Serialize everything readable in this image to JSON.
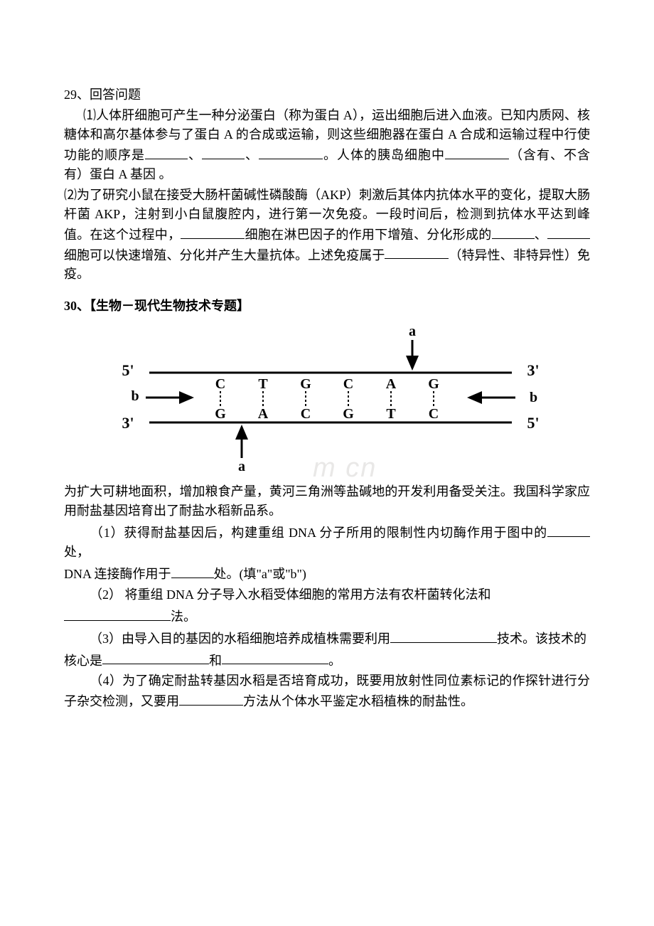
{
  "q29": {
    "header": "29、回答问题",
    "p1a": "⑴人体肝细胞可产生一种分泌蛋白（称为蛋白 A），运出细胞后进入血液。已知内质网、核糖体和高尔基体参与了蛋白 A 的合成或运输，则这些细胞器在蛋白 A 合成和运输过程中行使功能的顺序是",
    "p1b": "。人体的胰岛细胞中",
    "p1c": "（含有、不含有）蛋白 A 基因 。",
    "p2a": "⑵为了研究小鼠在接受大肠杆菌碱性磷酸酶（AKP）刺激后其体内抗体水平的变化，提取大肠杆菌 AKP，注射到小白鼠腹腔内，进行第一次免疫。一段时间后，检测到抗体水平达到峰值。在这个过程中，",
    "p2b": "细胞在淋巴因子的作用下增殖、分化形成的",
    "p2c": "细胞可以快速增殖、分化并产生大量抗体。上述免疫属于",
    "p2d": "（特异性、非特异性）免疫。"
  },
  "q30": {
    "title": "30、【生物－现代生物技术专题】",
    "intro": "为扩大可耕地面积，增加粮食产量，黄河三角洲等盐碱地的开发利用备受关注。我国科学家应用耐盐基因培育出了耐盐水稻新品系。",
    "p1a": "（1）获得耐盐基因后，构建重组 DNA 分子所用的限制性内切酶作用于图中的",
    "p1b": "处，",
    "p1c": "DNA 连接酶作用于",
    "p1d": "处。(填\"a\"或\"b\")",
    "p2a": "（2） 将重组 DNA 分子导入水稻受体细胞的常用方法有农杆菌转化法和",
    "p2b": "法。",
    "p3a": "（3）由导入目的基因的水稻细胞培养成植株需要利用",
    "p3b": "技术。该技术的",
    "p3c": "核心是",
    "p3d": "和",
    "p3e": "。",
    "p4a": "（4）为了确定耐盐转基因水稻是否培育成功，既要用放射性同位素标记的作探针进行分子杂交检测，又要用",
    "p4b": "方法从个体水平鉴定水稻植株的耐盐性。"
  },
  "diagram": {
    "top_bases": [
      "C",
      "T",
      "G",
      "C",
      "A",
      "G"
    ],
    "bottom_bases": [
      "G",
      "A",
      "C",
      "G",
      "T",
      "C"
    ],
    "label_a": "a",
    "label_b": "b",
    "end5": "5'",
    "end3": "3'",
    "line_color": "#000000",
    "font_size": 20,
    "end_font_size": 22
  },
  "watermark": {
    "text": "m cn",
    "color": "#e9e8e7"
  }
}
